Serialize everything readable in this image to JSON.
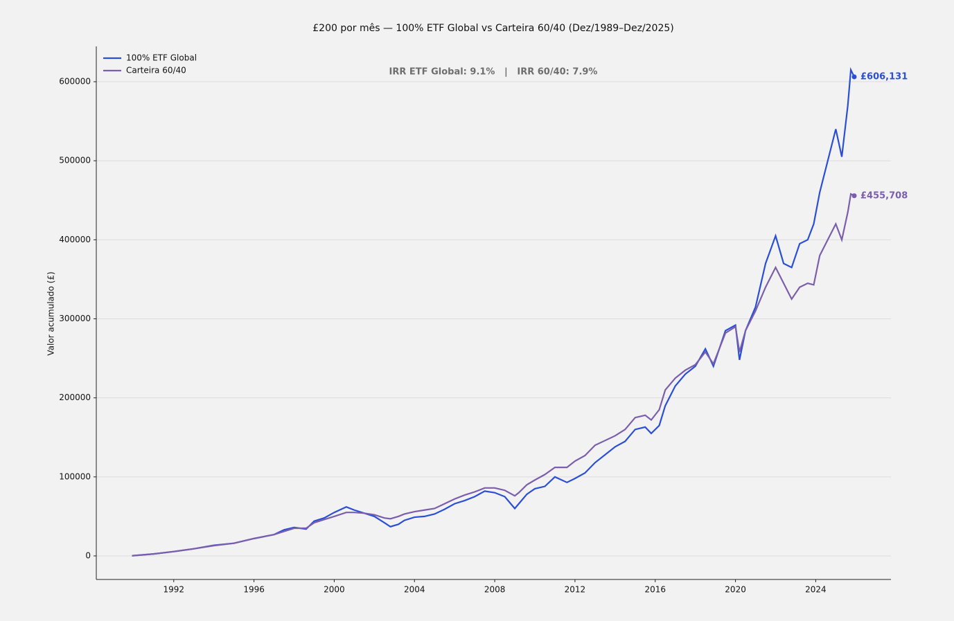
{
  "chart_data": {
    "type": "line",
    "title": "£200 por mês — 100% ETF Global vs Carteira 60/40 (Dez/1989–Dez/2025)",
    "annotation": "IRR ETF Global: 9.1%   |   IRR 60/40: 7.9%",
    "ylabel": "Valor acumulado (£)",
    "legend": "upper left",
    "grid": true,
    "xlim": [
      1988.14,
      2027.75
    ],
    "ylim": [
      -29800,
      644700
    ],
    "xticks": [
      1992,
      1996,
      2000,
      2004,
      2008,
      2012,
      2016,
      2020,
      2024
    ],
    "yticks": [
      0,
      100000,
      200000,
      300000,
      400000,
      500000,
      600000
    ],
    "x": [
      1989.92,
      1991,
      1992,
      1993,
      1994,
      1995,
      1996,
      1997,
      1997.5,
      1998,
      1998.6,
      1999,
      1999.5,
      2000,
      2000.6,
      2001,
      2001.5,
      2002,
      2002.5,
      2002.8,
      2003.2,
      2003.5,
      2004,
      2004.5,
      2005,
      2005.5,
      2006,
      2006.5,
      2007,
      2007.5,
      2008,
      2008.5,
      2009,
      2009.2,
      2009.6,
      2010,
      2010.5,
      2011,
      2011.6,
      2012,
      2012.5,
      2013,
      2013.5,
      2014,
      2014.5,
      2015,
      2015.5,
      2015.8,
      2016.2,
      2016.5,
      2017,
      2017.5,
      2018,
      2018.5,
      2018.9,
      2019.5,
      2020,
      2020.2,
      2020.5,
      2021,
      2021.5,
      2022,
      2022.4,
      2022.8,
      2023.2,
      2023.6,
      2023.9,
      2024.2,
      2024.5,
      2025,
      2025.3,
      2025.6,
      2025.75,
      2025.92
    ],
    "series": [
      {
        "name": "100% ETF Global",
        "color": "#2a4fd6",
        "values": [
          200,
          2500,
          5500,
          9000,
          13500,
          16000,
          22000,
          27000,
          33000,
          36000,
          34000,
          44000,
          48000,
          55000,
          62000,
          58000,
          54000,
          50000,
          42000,
          37000,
          40000,
          45000,
          49000,
          50000,
          53000,
          59000,
          66000,
          70000,
          75000,
          82000,
          80000,
          75000,
          60000,
          66000,
          78000,
          85000,
          88000,
          100000,
          93000,
          98000,
          105000,
          118000,
          128000,
          138000,
          145000,
          160000,
          163000,
          155000,
          165000,
          190000,
          215000,
          230000,
          240000,
          262000,
          240000,
          285000,
          292000,
          248000,
          285000,
          315000,
          370000,
          405000,
          370000,
          365000,
          395000,
          400000,
          420000,
          460000,
          490000,
          540000,
          505000,
          570000,
          615000,
          606131
        ],
        "value_labels": [
          null,
          null,
          null,
          null,
          null,
          null,
          null,
          null,
          null,
          null,
          null,
          null,
          null,
          null,
          null,
          null,
          null,
          null,
          null,
          null,
          null,
          null,
          null,
          null,
          null,
          null,
          null,
          null,
          null,
          null,
          null,
          null,
          null,
          null,
          null,
          null,
          null,
          null,
          null,
          null,
          null,
          null,
          null,
          null,
          null,
          null,
          null,
          null,
          null,
          null,
          null,
          null,
          null,
          null,
          null,
          null,
          null,
          null,
          null,
          null,
          null,
          null,
          null,
          null,
          null,
          null,
          null,
          null,
          null,
          null,
          null,
          null,
          null,
          "£606,131"
        ]
      },
      {
        "name": "Carteira 60/40",
        "color": "#7b5eab",
        "values": [
          200,
          2500,
          5500,
          9000,
          13000,
          16000,
          22000,
          27000,
          31000,
          35000,
          35000,
          42000,
          46000,
          50000,
          55000,
          55000,
          54000,
          52000,
          48000,
          47000,
          50000,
          53000,
          56000,
          58000,
          60000,
          66000,
          72000,
          77000,
          81000,
          86000,
          86000,
          83000,
          76000,
          80000,
          90000,
          96000,
          103000,
          112000,
          112000,
          120000,
          127000,
          140000,
          146000,
          152000,
          160000,
          175000,
          178000,
          172000,
          185000,
          210000,
          225000,
          235000,
          242000,
          258000,
          243000,
          282000,
          290000,
          258000,
          285000,
          310000,
          340000,
          365000,
          345000,
          325000,
          340000,
          345000,
          343000,
          380000,
          395000,
          420000,
          400000,
          435000,
          458000,
          455708
        ],
        "value_labels": [
          null,
          null,
          null,
          null,
          null,
          null,
          null,
          null,
          null,
          null,
          null,
          null,
          null,
          null,
          null,
          null,
          null,
          null,
          null,
          null,
          null,
          null,
          null,
          null,
          null,
          null,
          null,
          null,
          null,
          null,
          null,
          null,
          null,
          null,
          null,
          null,
          null,
          null,
          null,
          null,
          null,
          null,
          null,
          null,
          null,
          null,
          null,
          null,
          null,
          null,
          null,
          null,
          null,
          null,
          null,
          null,
          null,
          null,
          null,
          null,
          null,
          null,
          null,
          null,
          null,
          null,
          null,
          null,
          null,
          null,
          null,
          null,
          null,
          "£455,708"
        ]
      }
    ]
  }
}
